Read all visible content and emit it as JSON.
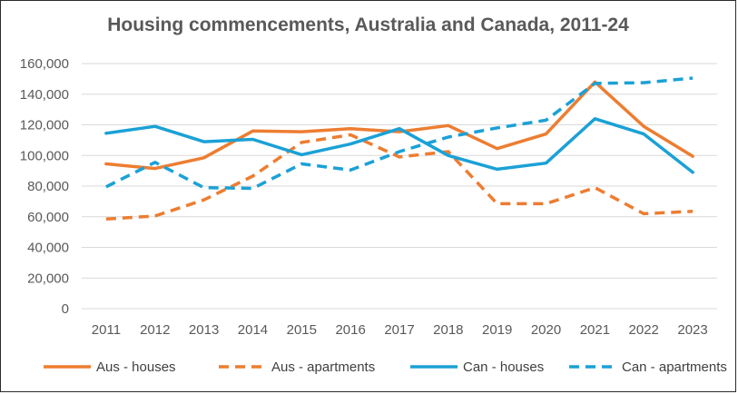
{
  "chart_data": {
    "type": "line",
    "title": "Housing commencements, Australia and Canada, 2011-24",
    "xlabel": "",
    "ylabel": "",
    "categories": [
      "2011",
      "2012",
      "2013",
      "2014",
      "2015",
      "2016",
      "2017",
      "2018",
      "2019",
      "2020",
      "2021",
      "2022",
      "2023"
    ],
    "ylim": [
      0,
      160000
    ],
    "yticks": [
      0,
      20000,
      40000,
      60000,
      80000,
      100000,
      120000,
      140000,
      160000
    ],
    "ytick_labels": [
      "0",
      "20,000",
      "40,000",
      "60,000",
      "80,000",
      "100,000",
      "120,000",
      "140,000",
      "160,000"
    ],
    "grid": true,
    "legend_position": "bottom",
    "series": [
      {
        "name": "Aus - houses",
        "color": "#ed7d31",
        "style": "solid",
        "values": [
          94500,
          91500,
          98500,
          116000,
          115500,
          117500,
          115500,
          119500,
          104500,
          114000,
          148000,
          119000,
          99500
        ]
      },
      {
        "name": "Aus - apartments",
        "color": "#ed7d31",
        "style": "dashed",
        "values": [
          58500,
          60500,
          71000,
          86500,
          108500,
          113500,
          99000,
          102500,
          68500,
          68500,
          79000,
          62000,
          63500
        ]
      },
      {
        "name": "Can - houses",
        "color": "#1ba1d6",
        "style": "solid",
        "values": [
          114500,
          119000,
          109000,
          110500,
          100500,
          107500,
          117500,
          100000,
          91000,
          95000,
          124000,
          114000,
          89000
        ]
      },
      {
        "name": "Can - apartments",
        "color": "#1ba1d6",
        "style": "dashed",
        "values": [
          79500,
          95500,
          79000,
          78500,
          94500,
          90500,
          102500,
          112000,
          118000,
          123000,
          147000,
          147500,
          150500
        ]
      }
    ]
  }
}
